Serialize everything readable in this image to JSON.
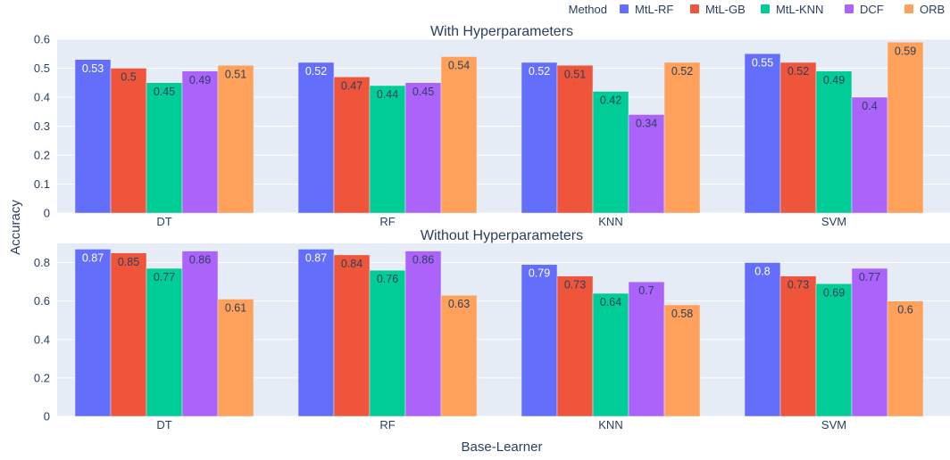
{
  "legend": {
    "title": "Method"
  },
  "xlabel": "Base-Learner",
  "ylabel": "Accuracy",
  "colors": {
    "MtL-RF": "#636efa",
    "MtL-GB": "#ef553b",
    "MtL-KNN": "#00cc96",
    "DCF": "#ab63fa",
    "ORB": "#ffa15a"
  },
  "chart_data": [
    {
      "type": "bar",
      "title": "With Hyperparameters",
      "categories": [
        "DT",
        "RF",
        "KNN",
        "SVM"
      ],
      "ylim": [
        0,
        0.6
      ],
      "yticks": [
        0,
        0.1,
        0.2,
        0.3,
        0.4,
        0.5,
        0.6
      ],
      "ytick_labels": [
        "0",
        "0.1",
        "0.2",
        "0.3",
        "0.4",
        "0.5",
        "0.6"
      ],
      "series": [
        {
          "name": "MtL-RF",
          "values": [
            0.53,
            0.52,
            0.52,
            0.55
          ],
          "labels": [
            "0.53",
            "0.52",
            "0.52",
            "0.55"
          ]
        },
        {
          "name": "MtL-GB",
          "values": [
            0.5,
            0.47,
            0.51,
            0.52
          ],
          "labels": [
            "0.5",
            "0.47",
            "0.51",
            "0.52"
          ]
        },
        {
          "name": "MtL-KNN",
          "values": [
            0.45,
            0.44,
            0.42,
            0.49
          ],
          "labels": [
            "0.45",
            "0.44",
            "0.42",
            "0.49"
          ]
        },
        {
          "name": "DCF",
          "values": [
            0.49,
            0.45,
            0.34,
            0.4
          ],
          "labels": [
            "0.49",
            "0.45",
            "0.34",
            "0.4"
          ]
        },
        {
          "name": "ORB",
          "values": [
            0.51,
            0.54,
            0.52,
            0.59
          ],
          "labels": [
            "0.51",
            "0.54",
            "0.52",
            "0.59"
          ]
        }
      ]
    },
    {
      "type": "bar",
      "title": "Without Hyperparameters",
      "categories": [
        "DT",
        "RF",
        "KNN",
        "SVM"
      ],
      "ylim": [
        0,
        0.9
      ],
      "yticks": [
        0,
        0.2,
        0.4,
        0.6,
        0.8
      ],
      "ytick_labels": [
        "0",
        "0.2",
        "0.4",
        "0.6",
        "0.8"
      ],
      "series": [
        {
          "name": "MtL-RF",
          "values": [
            0.87,
            0.87,
            0.79,
            0.8
          ],
          "labels": [
            "0.87",
            "0.87",
            "0.79",
            "0.8"
          ]
        },
        {
          "name": "MtL-GB",
          "values": [
            0.85,
            0.84,
            0.73,
            0.73
          ],
          "labels": [
            "0.85",
            "0.84",
            "0.73",
            "0.73"
          ]
        },
        {
          "name": "MtL-KNN",
          "values": [
            0.77,
            0.76,
            0.64,
            0.69
          ],
          "labels": [
            "0.77",
            "0.76",
            "0.64",
            "0.69"
          ]
        },
        {
          "name": "DCF",
          "values": [
            0.86,
            0.86,
            0.7,
            0.77
          ],
          "labels": [
            "0.86",
            "0.86",
            "0.7",
            "0.77"
          ]
        },
        {
          "name": "ORB",
          "values": [
            0.61,
            0.63,
            0.58,
            0.6
          ],
          "labels": [
            "0.61",
            "0.63",
            "0.58",
            "0.6"
          ]
        }
      ]
    }
  ]
}
